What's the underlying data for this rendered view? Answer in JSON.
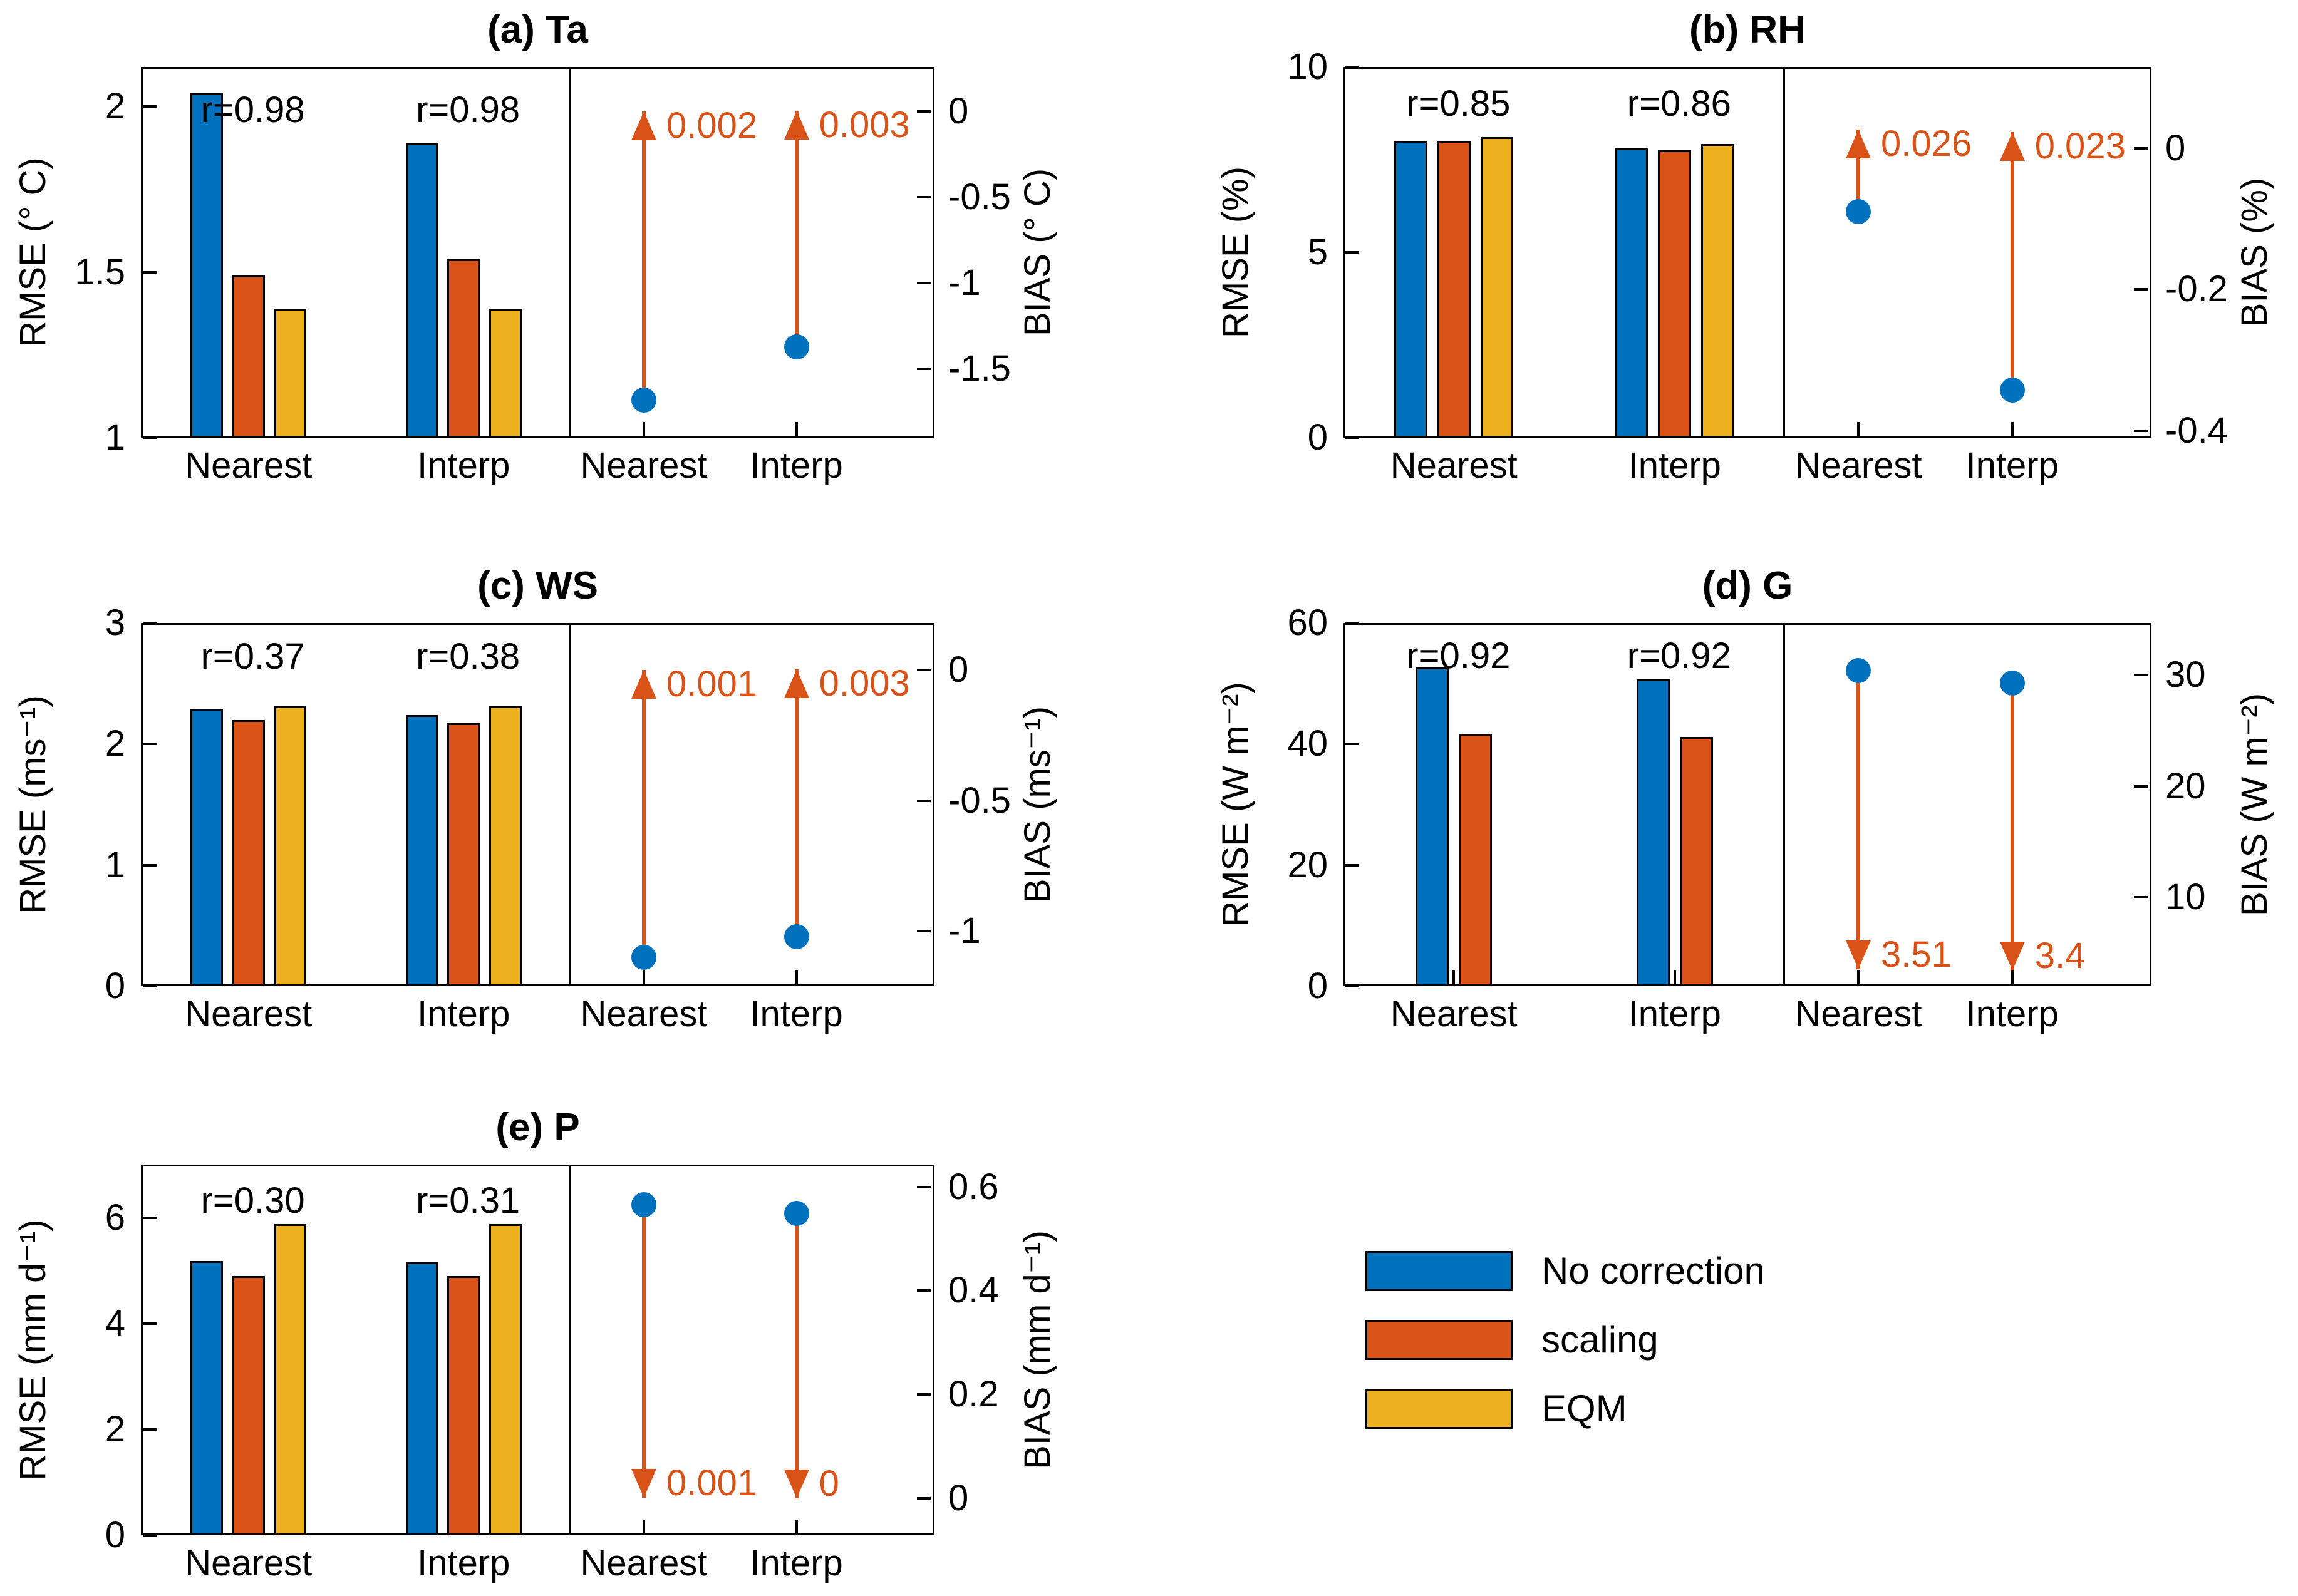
{
  "figure": {
    "background": "#ffffff",
    "series_colors": [
      "#0072BD",
      "#D95319",
      "#EDB120"
    ],
    "annotation_color": "#D95319",
    "dot_color": "#0072BD",
    "axis_color": "#000000"
  },
  "legend": {
    "items": [
      {
        "label": "No correction",
        "color": "#0072BD"
      },
      {
        "label": "scaling",
        "color": "#D95319"
      },
      {
        "label": "EQM",
        "color": "#EDB120"
      }
    ]
  },
  "chart_data": [
    {
      "id": "a",
      "type": "bar",
      "title": "(a) Ta",
      "ylabel_left": "RMSE (° C)",
      "ylabel_right": "BIAS (° C)",
      "categories": [
        "Nearest",
        "Interp"
      ],
      "series": [
        {
          "name": "No correction",
          "values": [
            2.04,
            1.89
          ]
        },
        {
          "name": "scaling",
          "values": [
            1.49,
            1.54
          ]
        },
        {
          "name": "EQM",
          "values": [
            1.39,
            1.39
          ]
        }
      ],
      "r_labels": [
        "r=0.98",
        "r=0.98"
      ],
      "r_y": 1.99,
      "rmse_ylim": [
        1,
        2.12
      ],
      "rmse_ticks": [
        1,
        1.5,
        2
      ],
      "bias_ylim": [
        -1.9,
        0.26
      ],
      "bias_ticks": [
        0,
        -0.5,
        -1,
        -1.5
      ],
      "bias": {
        "direction": "up",
        "dots": [
          -1.68,
          -1.37
        ],
        "arrow_tips": [
          0.002,
          0.003
        ],
        "labels": [
          "0.002",
          "0.003"
        ]
      }
    },
    {
      "id": "b",
      "type": "bar",
      "title": "(b) RH",
      "ylabel_left": "RMSE (%)",
      "ylabel_right": "BIAS (%)",
      "categories": [
        "Nearest",
        "Interp"
      ],
      "series": [
        {
          "name": "No correction",
          "values": [
            8.0,
            7.8
          ]
        },
        {
          "name": "scaling",
          "values": [
            8.0,
            7.76
          ]
        },
        {
          "name": "EQM",
          "values": [
            8.1,
            7.92
          ]
        }
      ],
      "r_labels": [
        "r=0.85",
        "r=0.86"
      ],
      "r_y": 9.0,
      "rmse_ylim": [
        0,
        10
      ],
      "rmse_ticks": [
        0,
        5,
        10
      ],
      "bias_ylim": [
        -0.41,
        0.115
      ],
      "bias_ticks": [
        0,
        -0.2,
        -0.4
      ],
      "bias": {
        "direction": "up",
        "dots": [
          -0.09,
          -0.343
        ],
        "arrow_tips": [
          0.026,
          0.023
        ],
        "labels": [
          "0.026",
          "0.023"
        ]
      }
    },
    {
      "id": "c",
      "type": "bar",
      "title": "(c) WS",
      "ylabel_left": "RMSE (ms⁻¹)",
      "ylabel_right": "BIAS (ms⁻¹)",
      "categories": [
        "Nearest",
        "Interp"
      ],
      "series": [
        {
          "name": "No correction",
          "values": [
            2.29,
            2.24
          ]
        },
        {
          "name": "scaling",
          "values": [
            2.2,
            2.17
          ]
        },
        {
          "name": "EQM",
          "values": [
            2.31,
            2.31
          ]
        }
      ],
      "r_labels": [
        "r=0.37",
        "r=0.38"
      ],
      "r_y": 2.72,
      "rmse_ylim": [
        0,
        3
      ],
      "rmse_ticks": [
        0,
        1,
        2,
        3
      ],
      "bias_ylim": [
        -1.21,
        0.18
      ],
      "bias_ticks": [
        0,
        -0.5,
        -1
      ],
      "bias": {
        "direction": "up",
        "dots": [
          -1.1,
          -1.02
        ],
        "arrow_tips": [
          0.001,
          0.003
        ],
        "labels": [
          "0.001",
          "0.003"
        ]
      }
    },
    {
      "id": "d",
      "type": "bar",
      "title": "(d) G",
      "ylabel_left": "RMSE (W m⁻²)",
      "ylabel_right": "BIAS (W m⁻²)",
      "categories": [
        "Nearest",
        "Interp"
      ],
      "series": [
        {
          "name": "No correction",
          "values": [
            52.7,
            50.7
          ]
        },
        {
          "name": "scaling",
          "values": [
            41.7,
            41.2
          ]
        }
      ],
      "r_labels": [
        "r=0.92",
        "r=0.92"
      ],
      "r_y": 54.5,
      "rmse_ylim": [
        0,
        60
      ],
      "rmse_ticks": [
        0,
        20,
        40,
        60
      ],
      "bias_ylim": [
        2,
        34.7
      ],
      "bias_ticks": [
        10,
        20,
        30
      ],
      "bias": {
        "direction": "down",
        "dots": [
          30.4,
          29.3
        ],
        "arrow_tips": [
          3.51,
          3.4
        ],
        "labels": [
          "3.51",
          "3.4"
        ]
      }
    },
    {
      "id": "e",
      "type": "bar",
      "title": "(e) P",
      "ylabel_left": "RMSE (mm d⁻¹)",
      "ylabel_right": "BIAS (mm d⁻¹)",
      "categories": [
        "Nearest",
        "Interp"
      ],
      "series": [
        {
          "name": "No correction",
          "values": [
            5.18,
            5.15
          ]
        },
        {
          "name": "scaling",
          "values": [
            4.9,
            4.9
          ]
        },
        {
          "name": "EQM",
          "values": [
            5.88,
            5.88
          ]
        }
      ],
      "r_labels": [
        "r=0.30",
        "r=0.31"
      ],
      "r_y": 6.32,
      "rmse_ylim": [
        0,
        7
      ],
      "rmse_ticks": [
        0,
        2,
        4,
        6
      ],
      "bias_ylim": [
        -0.071,
        0.643
      ],
      "bias_ticks": [
        0,
        0.2,
        0.4,
        0.6
      ],
      "bias": {
        "direction": "down",
        "dots": [
          0.566,
          0.549
        ],
        "arrow_tips": [
          0.001,
          0
        ],
        "labels": [
          "0.001",
          "0"
        ]
      }
    }
  ]
}
